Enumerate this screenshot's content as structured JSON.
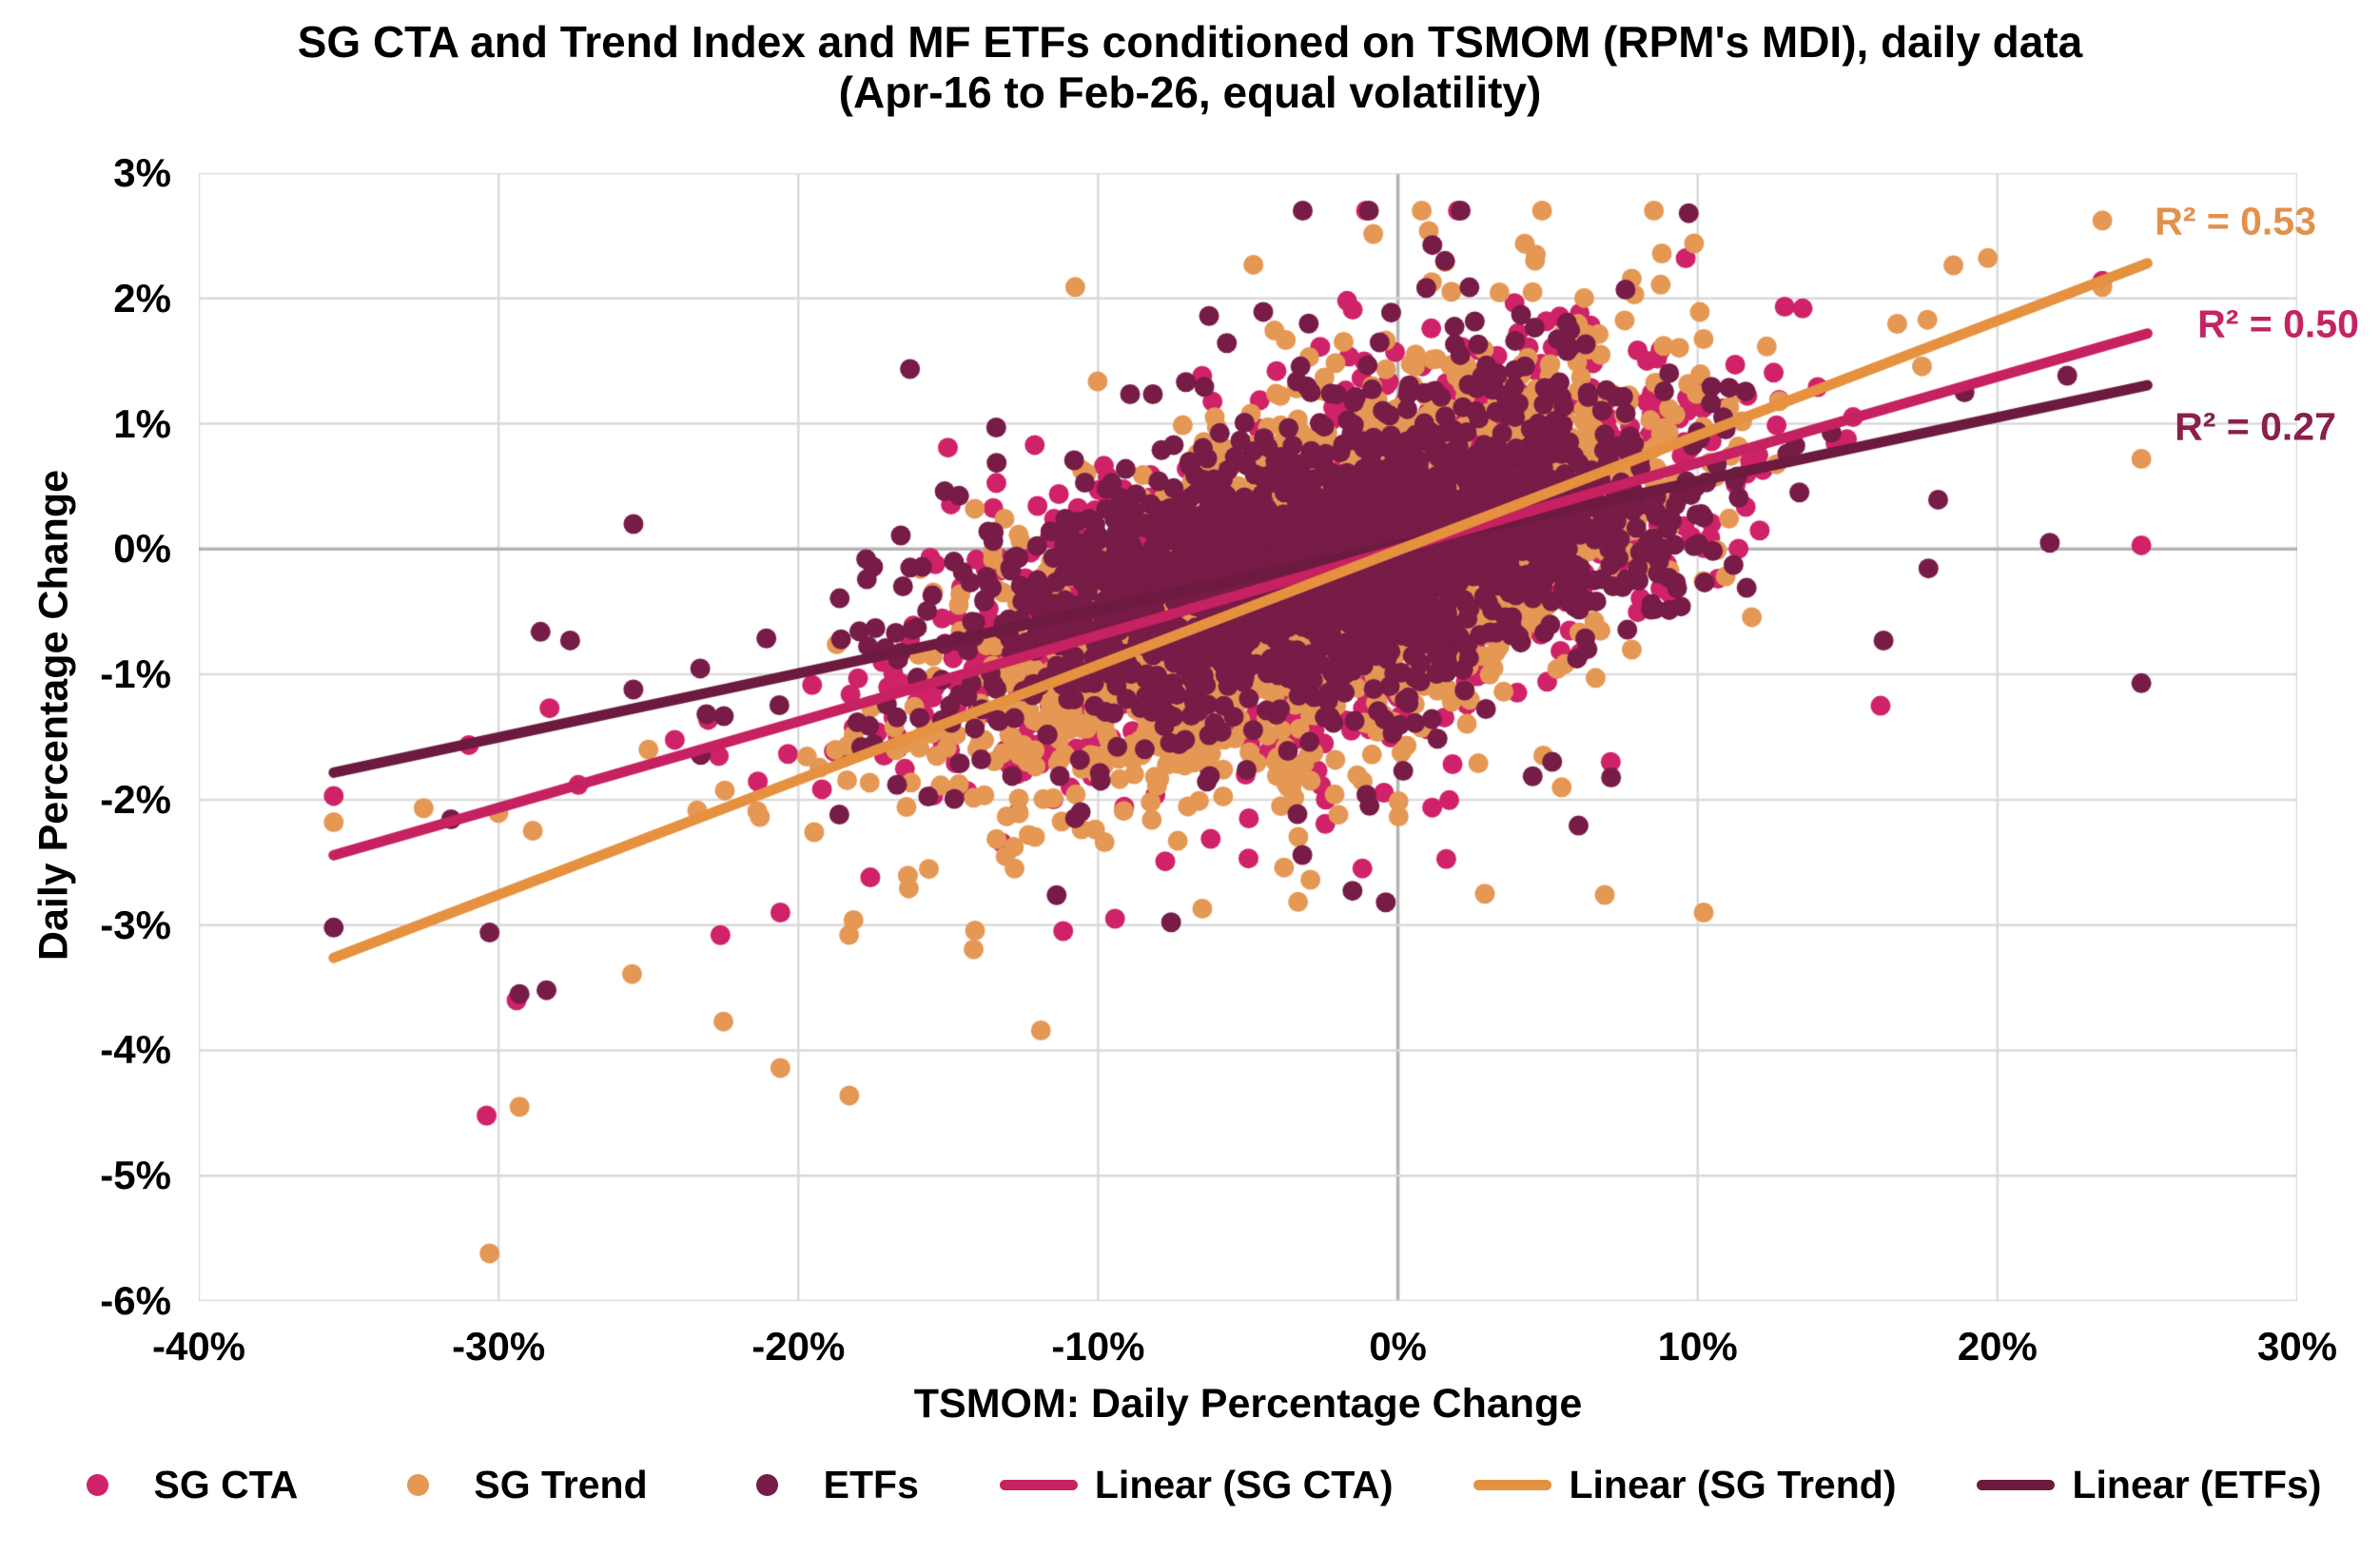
{
  "title": {
    "line1": "SG CTA and Trend Index and MF ETFs conditioned on TSMOM (RPM's MDI), daily data",
    "line2": "(Apr-16 to Feb-26, equal volatility)"
  },
  "x_axis": {
    "title": "TSMOM: Daily Percentage Change",
    "min": -40,
    "max": 30,
    "tick_step": 10,
    "ticks": [
      "-40%",
      "-30%",
      "-20%",
      "-10%",
      "0%",
      "10%",
      "20%",
      "30%"
    ],
    "tick_values": [
      -40,
      -30,
      -20,
      -10,
      0,
      10,
      20,
      30
    ]
  },
  "y_axis": {
    "title": "Daily Percentage Change",
    "min": -6,
    "max": 3,
    "tick_step": 1,
    "ticks": [
      "3%",
      "2%",
      "1%",
      "0%",
      "-1%",
      "-2%",
      "-3%",
      "-4%",
      "-5%",
      "-6%"
    ],
    "tick_values": [
      3,
      2,
      1,
      0,
      -1,
      -2,
      -3,
      -4,
      -5,
      -6
    ]
  },
  "chart_data": {
    "type": "scatter",
    "title": "SG CTA and Trend Index and MF ETFs conditioned on TSMOM (RPM's MDI), daily data (Apr-16 to Feb-26, equal volatility)",
    "xlabel": "TSMOM: Daily Percentage Change",
    "ylabel": "Daily Percentage Change",
    "xlim": [
      -40,
      30
    ],
    "ylim": [
      -6,
      3
    ],
    "grid": {
      "on": true,
      "line_color": "#DADADA",
      "zero_line_color": "#B3B3B3"
    },
    "point_radius": 10.5,
    "series": [
      {
        "name": "SG CTA",
        "color": "#D02268",
        "cloud": {
          "seed": 101,
          "n": 2300,
          "x_mean": -1.2,
          "x_sd_left": 6.1,
          "x_sd_right": 4.7,
          "left_p": 0.55,
          "x_tail_p": 0.05,
          "x_tail_mult": 2.0,
          "x_clip": [
            -32.5,
            23.5
          ],
          "noise_sd": 0.52,
          "noise_tail_p": 0.09,
          "noise_tail_sd": 1.15,
          "y_clip": [
            -5.45,
            2.7
          ]
        },
        "outliers": [
          [
            -35.5,
            -1.97
          ],
          [
            -30.4,
            -4.52
          ],
          [
            -29.4,
            -3.6
          ],
          [
            -28.3,
            -1.27
          ],
          [
            -22.6,
            -3.08
          ],
          [
            -20.6,
            -2.9
          ],
          [
            -17.6,
            -2.62
          ],
          [
            9.6,
            2.32
          ],
          [
            24.8,
            0.03
          ],
          [
            16.1,
            -1.25
          ]
        ],
        "trend": {
          "legend_label": "Linear (SG CTA)",
          "color": "#C62160",
          "slope": 0.0688,
          "intercept": 0.0,
          "x_start": -35.5,
          "x_end": 25,
          "r2_label": "R² = 0.50",
          "r2": 0.5,
          "r2_color": "#C52362"
        }
      },
      {
        "name": "SG Trend",
        "color": "#E59754",
        "cloud": {
          "seed": 202,
          "n": 2300,
          "x_mean": -1.2,
          "x_sd_left": 6.1,
          "x_sd_right": 4.7,
          "left_p": 0.55,
          "x_tail_p": 0.05,
          "x_tail_mult": 2.0,
          "x_clip": [
            -32.5,
            23.5
          ],
          "noise_sd": 0.58,
          "noise_tail_p": 0.09,
          "noise_tail_sd": 1.2,
          "y_clip": [
            -5.45,
            2.7
          ]
        },
        "outliers": [
          [
            -35.5,
            -2.18
          ],
          [
            -30.3,
            -5.62
          ],
          [
            -29.3,
            -4.45
          ],
          [
            -22.5,
            -3.77
          ],
          [
            -20.6,
            -4.14
          ],
          [
            -18.3,
            -4.36
          ],
          [
            24.8,
            0.72
          ],
          [
            10.2,
            -2.9
          ],
          [
            6.9,
            -2.76
          ],
          [
            2.9,
            -2.75
          ],
          [
            4.6,
            2.35
          ],
          [
            -25.0,
            -1.6
          ]
        ],
        "trend": {
          "legend_label": "Linear (SG Trend)",
          "color": "#E59140",
          "slope": 0.0916,
          "intercept": -0.01,
          "x_start": -35.5,
          "x_end": 25,
          "r2_label": "R² = 0.53",
          "r2": 0.53,
          "r2_color": "#E2914C"
        }
      },
      {
        "name": "ETFs",
        "color": "#771B47",
        "cloud": {
          "seed": 303,
          "n": 2300,
          "x_mean": -1.2,
          "x_sd_left": 6.1,
          "x_sd_right": 4.7,
          "left_p": 0.55,
          "x_tail_p": 0.05,
          "x_tail_mult": 2.0,
          "x_clip": [
            -32.5,
            23.5
          ],
          "noise_sd": 0.5,
          "noise_tail_p": 0.09,
          "noise_tail_sd": 1.1,
          "y_clip": [
            -5.45,
            2.7
          ]
        },
        "outliers": [
          [
            -35.5,
            -3.02
          ],
          [
            -30.3,
            -3.06
          ],
          [
            -29.3,
            -3.55
          ],
          [
            -28.4,
            -3.52
          ],
          [
            -28.6,
            -0.66
          ],
          [
            -25.5,
            0.2
          ],
          [
            9.7,
            2.68
          ],
          [
            24.8,
            -1.07
          ],
          [
            -6.3,
            1.86
          ],
          [
            -13.4,
            0.97
          ],
          [
            18.9,
            1.25
          ],
          [
            16.2,
            -0.73
          ]
        ],
        "trend": {
          "legend_label": "Linear (ETFs)",
          "color": "#6C1A3F",
          "slope": 0.0511,
          "intercept": 0.03,
          "x_start": -35.5,
          "x_end": 25,
          "r2_label": "R² = 0.27",
          "r2": 0.27,
          "r2_color": "#8A1F4E"
        }
      }
    ]
  },
  "legend": {
    "items": [
      {
        "label": "SG CTA",
        "marker": "dot",
        "color": "#D02268"
      },
      {
        "label": "SG Trend",
        "marker": "dot",
        "color": "#E59754"
      },
      {
        "label": "ETFs",
        "marker": "dot",
        "color": "#771B47"
      },
      {
        "label": "Linear (SG CTA)",
        "marker": "line",
        "color": "#C62160"
      },
      {
        "label": "Linear (SG Trend)",
        "marker": "line",
        "color": "#E59140"
      },
      {
        "label": "Linear (ETFs)",
        "marker": "line",
        "color": "#6C1A3F"
      }
    ]
  }
}
